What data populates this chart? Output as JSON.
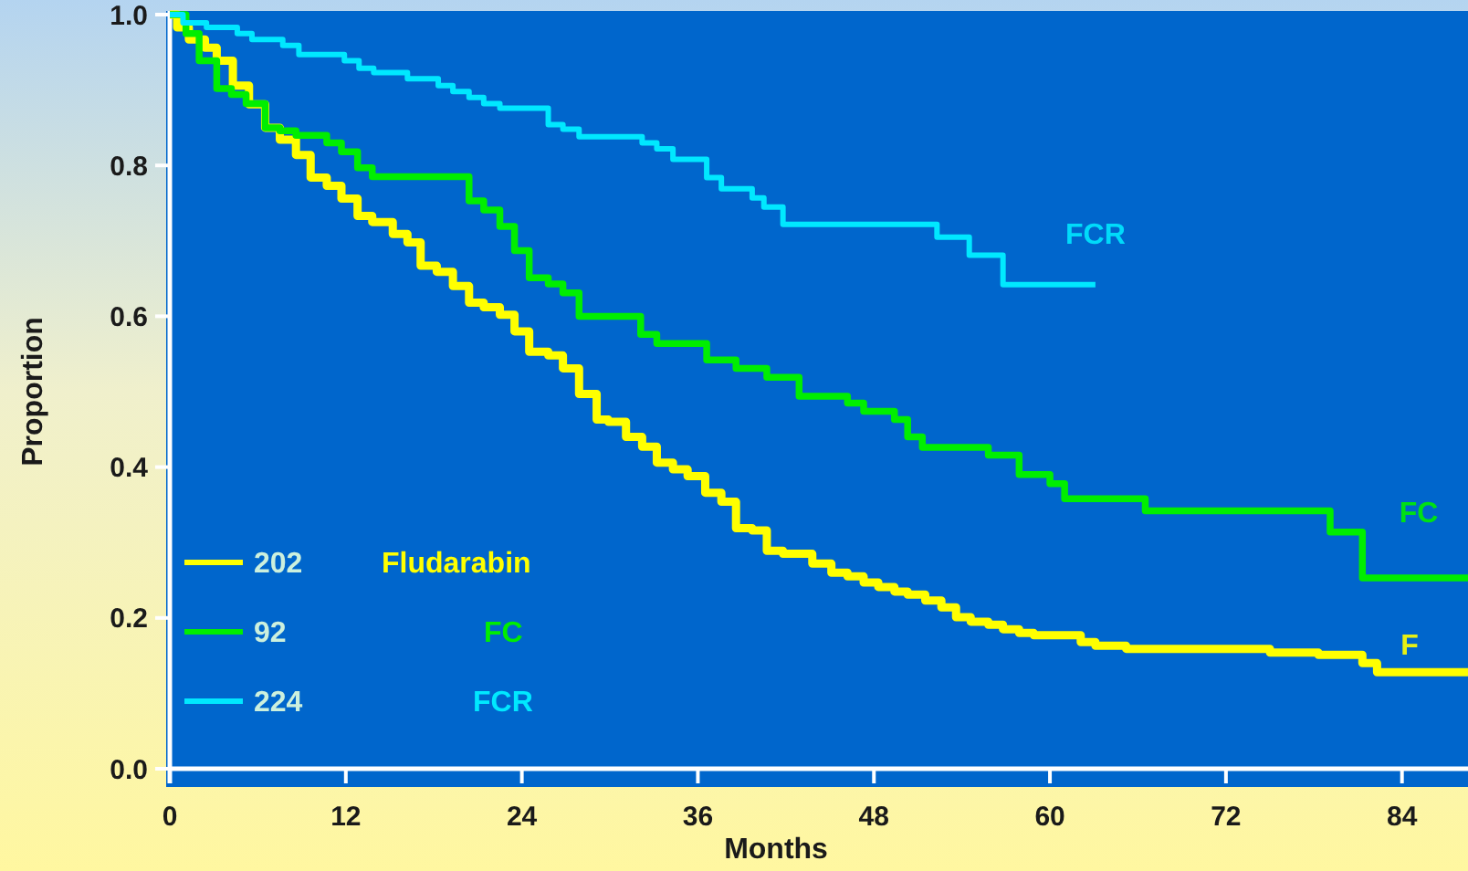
{
  "chart_data": {
    "type": "step",
    "xlabel": "Months",
    "ylabel": "Proportion",
    "xlim": [
      0,
      88.5
    ],
    "ylim": [
      0,
      1
    ],
    "xticks": [
      0,
      12,
      24,
      36,
      48,
      60,
      72,
      84
    ],
    "yticks": [
      {
        "value": 0,
        "label": "0.0"
      },
      {
        "value": 0.2,
        "label": "0.2"
      },
      {
        "value": 0.4,
        "label": "0.4"
      },
      {
        "value": 0.6,
        "label": "0.6"
      },
      {
        "value": 0.8,
        "label": "0.8"
      },
      {
        "value": 1,
        "label": "1.0"
      }
    ],
    "legend": "bottom left",
    "grid": false,
    "series": [
      {
        "name": "Fludarabin",
        "color": "#ffff00",
        "x": [
          0,
          0.5,
          1.3,
          2.4,
          3.2,
          4.3,
          5.4,
          6.5,
          7.5,
          8.6,
          9.6,
          10.7,
          11.7,
          12.8,
          13.8,
          15.2,
          16.2,
          17.1,
          18.2,
          19.3,
          20.4,
          21.4,
          22.5,
          23.5,
          24.5,
          25.8,
          26.8,
          27.9,
          29.1,
          29.9,
          31.1,
          32.2,
          33.2,
          34.3,
          35.3,
          36.5,
          37.6,
          38.6,
          39.7,
          40.7,
          41.8,
          43.8,
          45.1,
          46.2,
          47.3,
          48.3,
          49.4,
          50.3,
          51.5,
          52.6,
          53.6,
          54.6,
          55.8,
          56.8,
          57.9,
          58.9,
          62.1,
          63.1,
          65.2,
          75,
          78.3,
          81.3,
          82.3,
          88.5
        ],
        "values": [
          1,
          0.983,
          0.967,
          0.956,
          0.939,
          0.906,
          0.881,
          0.85,
          0.834,
          0.814,
          0.784,
          0.773,
          0.756,
          0.733,
          0.725,
          0.709,
          0.698,
          0.667,
          0.659,
          0.64,
          0.618,
          0.612,
          0.602,
          0.58,
          0.553,
          0.548,
          0.531,
          0.497,
          0.463,
          0.46,
          0.44,
          0.427,
          0.406,
          0.397,
          0.388,
          0.366,
          0.354,
          0.319,
          0.316,
          0.289,
          0.285,
          0.272,
          0.26,
          0.255,
          0.247,
          0.241,
          0.235,
          0.231,
          0.223,
          0.214,
          0.201,
          0.195,
          0.191,
          0.185,
          0.18,
          0.177,
          0.168,
          0.163,
          0.159,
          0.154,
          0.151,
          0.14,
          0.128,
          0.128
        ]
      },
      {
        "name": "FC",
        "color": "#00ee00",
        "x": [
          0,
          1.1,
          2,
          3.2,
          4.2,
          5.2,
          6.5,
          7.5,
          8.6,
          10.7,
          11.7,
          12.8,
          13.8,
          20.4,
          21.4,
          22.5,
          23.5,
          24.5,
          25.8,
          26.8,
          27.9,
          32.1,
          33.2,
          36.6,
          38.6,
          40.7,
          42.9,
          46.2,
          47.3,
          49.4,
          50.3,
          51.3,
          55.8,
          57.9,
          60,
          61,
          66.5,
          79.1,
          81.3,
          88.5
        ],
        "values": [
          1,
          0.975,
          0.939,
          0.902,
          0.894,
          0.882,
          0.85,
          0.846,
          0.84,
          0.83,
          0.818,
          0.797,
          0.785,
          0.753,
          0.741,
          0.719,
          0.687,
          0.651,
          0.643,
          0.631,
          0.6,
          0.576,
          0.564,
          0.542,
          0.531,
          0.519,
          0.494,
          0.485,
          0.474,
          0.463,
          0.44,
          0.426,
          0.416,
          0.39,
          0.378,
          0.358,
          0.342,
          0.314,
          0.253,
          0.253
        ]
      },
      {
        "name": "FCR",
        "color": "#00e8ff",
        "x": [
          0,
          0.9,
          2.5,
          4.6,
          5.6,
          7.7,
          8.8,
          11.9,
          12.9,
          13.9,
          16.2,
          18.3,
          19.3,
          20.4,
          21.4,
          22.5,
          25.8,
          26.8,
          27.9,
          32.2,
          33.2,
          34.3,
          36.6,
          37.6,
          39.7,
          40.5,
          41.8,
          52.3,
          54.5,
          56.8,
          63.1
        ],
        "values": [
          1,
          0.989,
          0.983,
          0.975,
          0.967,
          0.959,
          0.947,
          0.939,
          0.929,
          0.923,
          0.915,
          0.906,
          0.898,
          0.89,
          0.882,
          0.876,
          0.854,
          0.848,
          0.838,
          0.83,
          0.822,
          0.808,
          0.784,
          0.769,
          0.757,
          0.745,
          0.722,
          0.705,
          0.681,
          0.642,
          0.642
        ]
      }
    ],
    "annotations": [
      "202",
      "92",
      "224",
      "F",
      "FC",
      "FCR"
    ]
  }
}
